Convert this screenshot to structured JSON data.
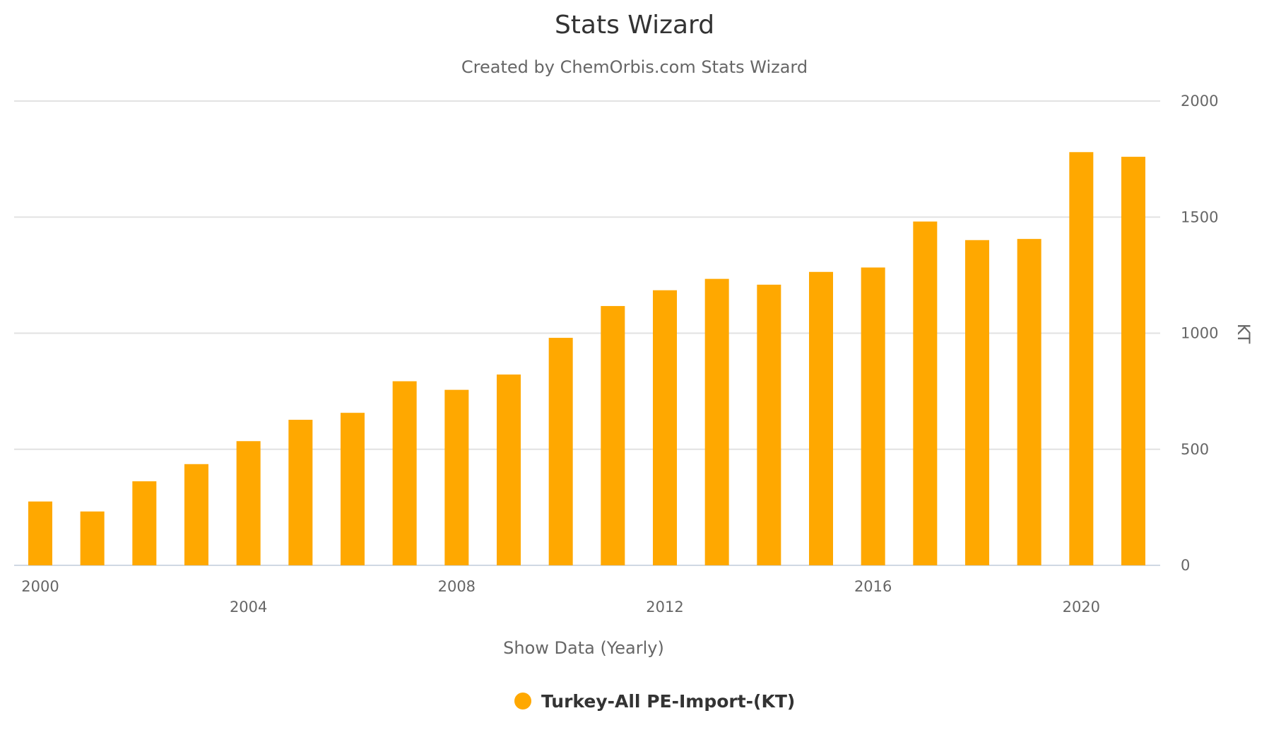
{
  "colors": {
    "bar": "#ffa800"
  },
  "chart_data": {
    "type": "bar",
    "title": "Stats Wizard",
    "subtitle": "Created by ChemOrbis.com Stats Wizard",
    "xlabel": "Show Data (Yearly)",
    "ylabel": "KT",
    "ylim": [
      0,
      2000
    ],
    "y_ticks": [
      "0",
      "500",
      "1000",
      "1500",
      "2000"
    ],
    "x_tick_labels": [
      "2000",
      "2004",
      "2008",
      "2012",
      "2016",
      "2020"
    ],
    "grid": true,
    "legend_position": "bottom-center",
    "categories": [
      "2000",
      "2001",
      "2002",
      "2003",
      "2004",
      "2005",
      "2006",
      "2007",
      "2008",
      "2009",
      "2010",
      "2011",
      "2012",
      "2013",
      "2014",
      "2015",
      "2016",
      "2017",
      "2018",
      "2019",
      "2020",
      "2021"
    ],
    "series": [
      {
        "name": "Turkey-All PE-Import-(KT)",
        "values": [
          275,
          232,
          362,
          436,
          535,
          627,
          657,
          793,
          756,
          822,
          980,
          1117,
          1185,
          1234,
          1209,
          1264,
          1283,
          1481,
          1401,
          1406,
          1780,
          1760
        ]
      }
    ]
  }
}
